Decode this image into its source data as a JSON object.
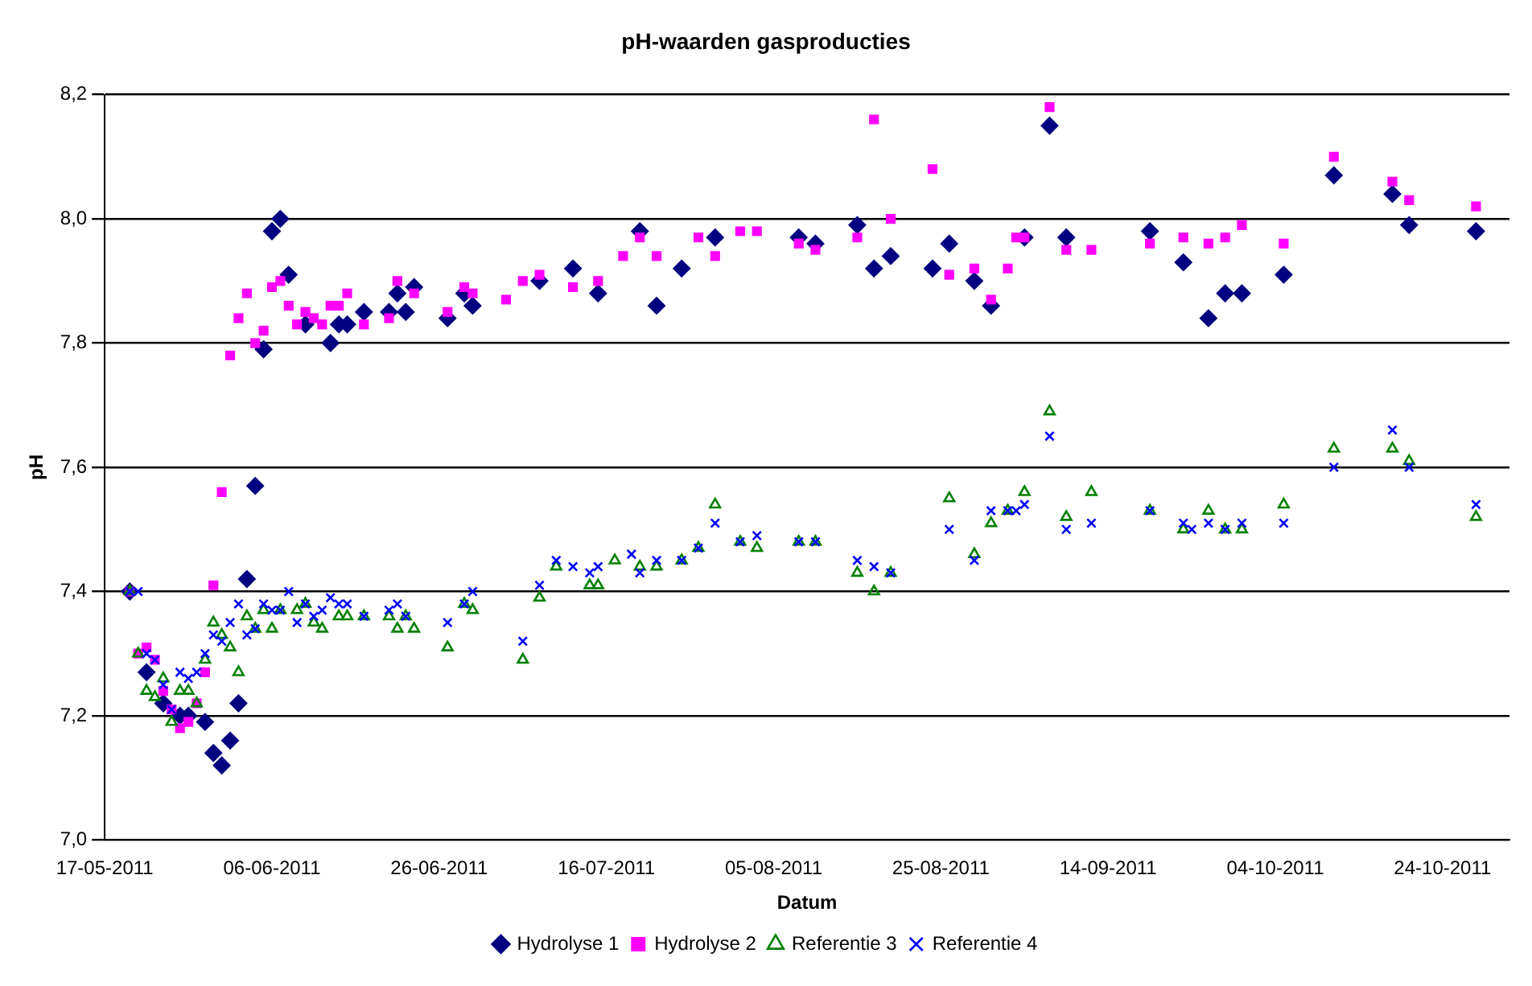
{
  "chart_data": {
    "type": "scatter",
    "title": "pH-waarden gasproducties",
    "xlabel": "Datum",
    "ylabel": "pH",
    "xlim": [
      "2011-05-17",
      "2011-11-01"
    ],
    "xticks": [
      {
        "value": "2011-05-17",
        "label": "17-05-2011"
      },
      {
        "value": "2011-06-06",
        "label": "06-06-2011"
      },
      {
        "value": "2011-06-26",
        "label": "26-06-2011"
      },
      {
        "value": "2011-07-16",
        "label": "16-07-2011"
      },
      {
        "value": "2011-08-05",
        "label": "05-08-2011"
      },
      {
        "value": "2011-08-25",
        "label": "25-08-2011"
      },
      {
        "value": "2011-09-14",
        "label": "14-09-2011"
      },
      {
        "value": "2011-10-04",
        "label": "04-10-2011"
      },
      {
        "value": "2011-10-24",
        "label": "24-10-2011"
      }
    ],
    "ylim": [
      7.0,
      8.2
    ],
    "yticks": [
      {
        "value": 7.0,
        "label": "7,0"
      },
      {
        "value": 7.2,
        "label": "7,2"
      },
      {
        "value": 7.4,
        "label": "7,4"
      },
      {
        "value": 7.6,
        "label": "7,6"
      },
      {
        "value": 7.8,
        "label": "7,8"
      },
      {
        "value": 8.0,
        "label": "8,0"
      },
      {
        "value": 8.2,
        "label": "8,2"
      }
    ],
    "grid": "y",
    "legend": "bottom",
    "series": [
      {
        "name": "Hydrolyse 1",
        "color": "#000080",
        "marker": "diamond",
        "x": [
          "2011-05-20",
          "2011-05-22",
          "2011-05-24",
          "2011-05-26",
          "2011-05-27",
          "2011-05-29",
          "2011-05-30",
          "2011-05-31",
          "2011-06-01",
          "2011-06-02",
          "2011-06-03",
          "2011-06-04",
          "2011-06-05",
          "2011-06-06",
          "2011-06-07",
          "2011-06-08",
          "2011-06-10",
          "2011-06-13",
          "2011-06-14",
          "2011-06-15",
          "2011-06-17",
          "2011-06-20",
          "2011-06-21",
          "2011-06-22",
          "2011-06-23",
          "2011-06-27",
          "2011-06-29",
          "2011-06-30",
          "2011-07-08",
          "2011-07-12",
          "2011-07-15",
          "2011-07-20",
          "2011-07-22",
          "2011-07-25",
          "2011-07-29",
          "2011-08-08",
          "2011-08-10",
          "2011-08-15",
          "2011-08-17",
          "2011-08-19",
          "2011-08-24",
          "2011-08-26",
          "2011-08-29",
          "2011-08-31",
          "2011-09-04",
          "2011-09-07",
          "2011-09-09",
          "2011-09-19",
          "2011-09-23",
          "2011-09-26",
          "2011-09-28",
          "2011-09-30",
          "2011-10-05",
          "2011-10-11",
          "2011-10-18",
          "2011-10-20",
          "2011-10-28"
        ],
        "values": [
          7.4,
          7.27,
          7.22,
          7.2,
          7.2,
          7.19,
          7.14,
          7.12,
          7.16,
          7.22,
          7.42,
          7.57,
          7.79,
          7.98,
          8.0,
          7.91,
          7.83,
          7.8,
          7.83,
          7.83,
          7.85,
          7.85,
          7.88,
          7.85,
          7.89,
          7.84,
          7.88,
          7.86,
          7.9,
          7.92,
          7.88,
          7.98,
          7.86,
          7.92,
          7.97,
          7.97,
          7.96,
          7.99,
          7.92,
          7.94,
          7.92,
          7.96,
          7.9,
          7.86,
          7.97,
          8.15,
          7.97,
          7.98,
          7.93,
          7.84,
          7.88,
          7.88,
          7.91,
          8.07,
          8.04,
          7.99,
          7.98
        ]
      },
      {
        "name": "Hydrolyse 2",
        "color": "#ff00ff",
        "marker": "square",
        "x": [
          "2011-05-20",
          "2011-05-21",
          "2011-05-22",
          "2011-05-23",
          "2011-05-24",
          "2011-05-25",
          "2011-05-26",
          "2011-05-27",
          "2011-05-28",
          "2011-05-29",
          "2011-05-30",
          "2011-05-31",
          "2011-06-01",
          "2011-06-02",
          "2011-06-03",
          "2011-06-04",
          "2011-06-05",
          "2011-06-06",
          "2011-06-07",
          "2011-06-08",
          "2011-06-09",
          "2011-06-10",
          "2011-06-11",
          "2011-06-12",
          "2011-06-13",
          "2011-06-14",
          "2011-06-15",
          "2011-06-17",
          "2011-06-20",
          "2011-06-21",
          "2011-06-23",
          "2011-06-27",
          "2011-06-29",
          "2011-06-30",
          "2011-07-04",
          "2011-07-06",
          "2011-07-08",
          "2011-07-12",
          "2011-07-15",
          "2011-07-18",
          "2011-07-20",
          "2011-07-22",
          "2011-07-27",
          "2011-07-29",
          "2011-08-01",
          "2011-08-03",
          "2011-08-08",
          "2011-08-10",
          "2011-08-15",
          "2011-08-17",
          "2011-08-19",
          "2011-08-24",
          "2011-08-26",
          "2011-08-29",
          "2011-08-31",
          "2011-09-02",
          "2011-09-03",
          "2011-09-04",
          "2011-09-07",
          "2011-09-09",
          "2011-09-12",
          "2011-09-19",
          "2011-09-23",
          "2011-09-26",
          "2011-09-28",
          "2011-09-30",
          "2011-10-05",
          "2011-10-11",
          "2011-10-18",
          "2011-10-20",
          "2011-10-28"
        ],
        "values": [
          7.4,
          7.3,
          7.31,
          7.29,
          7.24,
          7.21,
          7.18,
          7.19,
          7.22,
          7.27,
          7.41,
          7.56,
          7.78,
          7.84,
          7.88,
          7.8,
          7.82,
          7.89,
          7.9,
          7.86,
          7.83,
          7.85,
          7.84,
          7.83,
          7.86,
          7.86,
          7.88,
          7.83,
          7.84,
          7.9,
          7.88,
          7.85,
          7.89,
          7.88,
          7.87,
          7.9,
          7.91,
          7.89,
          7.9,
          7.94,
          7.97,
          7.94,
          7.97,
          7.94,
          7.98,
          7.98,
          7.96,
          7.95,
          7.97,
          8.16,
          8.0,
          8.08,
          7.91,
          7.92,
          7.87,
          7.92,
          7.97,
          7.97,
          8.18,
          7.95,
          7.95,
          7.96,
          7.97,
          7.96,
          7.97,
          7.99,
          7.96,
          8.1,
          8.06,
          8.03,
          8.02
        ]
      },
      {
        "name": "Referentie 3",
        "color": "#008000",
        "marker": "triangle",
        "x": [
          "2011-05-20",
          "2011-05-21",
          "2011-05-22",
          "2011-05-23",
          "2011-05-24",
          "2011-05-25",
          "2011-05-26",
          "2011-05-27",
          "2011-05-28",
          "2011-05-29",
          "2011-05-30",
          "2011-05-31",
          "2011-06-01",
          "2011-06-02",
          "2011-06-03",
          "2011-06-04",
          "2011-06-05",
          "2011-06-06",
          "2011-06-07",
          "2011-06-09",
          "2011-06-10",
          "2011-06-11",
          "2011-06-12",
          "2011-06-14",
          "2011-06-15",
          "2011-06-17",
          "2011-06-20",
          "2011-06-21",
          "2011-06-22",
          "2011-06-23",
          "2011-06-27",
          "2011-06-29",
          "2011-06-30",
          "2011-07-06",
          "2011-07-08",
          "2011-07-10",
          "2011-07-14",
          "2011-07-15",
          "2011-07-17",
          "2011-07-20",
          "2011-07-22",
          "2011-07-25",
          "2011-07-27",
          "2011-07-29",
          "2011-08-01",
          "2011-08-03",
          "2011-08-08",
          "2011-08-10",
          "2011-08-15",
          "2011-08-17",
          "2011-08-19",
          "2011-08-26",
          "2011-08-29",
          "2011-08-31",
          "2011-09-02",
          "2011-09-04",
          "2011-09-07",
          "2011-09-09",
          "2011-09-12",
          "2011-09-19",
          "2011-09-23",
          "2011-09-26",
          "2011-09-28",
          "2011-09-30",
          "2011-10-05",
          "2011-10-11",
          "2011-10-18",
          "2011-10-20",
          "2011-10-28"
        ],
        "values": [
          7.4,
          7.3,
          7.24,
          7.23,
          7.26,
          7.19,
          7.24,
          7.24,
          7.22,
          7.29,
          7.35,
          7.33,
          7.31,
          7.27,
          7.36,
          7.34,
          7.37,
          7.34,
          7.37,
          7.37,
          7.38,
          7.35,
          7.34,
          7.36,
          7.36,
          7.36,
          7.36,
          7.34,
          7.36,
          7.34,
          7.31,
          7.38,
          7.37,
          7.29,
          7.39,
          7.44,
          7.41,
          7.41,
          7.45,
          7.44,
          7.44,
          7.45,
          7.47,
          7.54,
          7.48,
          7.47,
          7.48,
          7.48,
          7.43,
          7.4,
          7.43,
          7.55,
          7.46,
          7.51,
          7.53,
          7.56,
          7.69,
          7.52,
          7.56,
          7.53,
          7.5,
          7.53,
          7.5,
          7.5,
          7.54,
          7.63,
          7.63,
          7.61,
          7.52
        ]
      },
      {
        "name": "Referentie 4",
        "color": "#0000ff",
        "marker": "cross",
        "x": [
          "2011-05-20",
          "2011-05-21",
          "2011-05-22",
          "2011-05-23",
          "2011-05-24",
          "2011-05-25",
          "2011-05-26",
          "2011-05-27",
          "2011-05-28",
          "2011-05-29",
          "2011-05-30",
          "2011-05-31",
          "2011-06-01",
          "2011-06-02",
          "2011-06-03",
          "2011-06-04",
          "2011-06-05",
          "2011-06-06",
          "2011-06-07",
          "2011-06-08",
          "2011-06-09",
          "2011-06-10",
          "2011-06-11",
          "2011-06-12",
          "2011-06-13",
          "2011-06-14",
          "2011-06-15",
          "2011-06-17",
          "2011-06-20",
          "2011-06-21",
          "2011-06-22",
          "2011-06-27",
          "2011-06-29",
          "2011-06-30",
          "2011-07-06",
          "2011-07-08",
          "2011-07-10",
          "2011-07-12",
          "2011-07-14",
          "2011-07-15",
          "2011-07-19",
          "2011-07-20",
          "2011-07-22",
          "2011-07-25",
          "2011-07-27",
          "2011-07-29",
          "2011-08-01",
          "2011-08-03",
          "2011-08-08",
          "2011-08-10",
          "2011-08-15",
          "2011-08-17",
          "2011-08-19",
          "2011-08-26",
          "2011-08-29",
          "2011-08-31",
          "2011-09-02",
          "2011-09-03",
          "2011-09-04",
          "2011-09-07",
          "2011-09-09",
          "2011-09-12",
          "2011-09-19",
          "2011-09-23",
          "2011-09-24",
          "2011-09-26",
          "2011-09-28",
          "2011-09-30",
          "2011-10-05",
          "2011-10-11",
          "2011-10-18",
          "2011-10-20",
          "2011-10-28"
        ],
        "values": [
          7.4,
          7.4,
          7.3,
          7.29,
          7.25,
          7.21,
          7.27,
          7.26,
          7.27,
          7.3,
          7.33,
          7.32,
          7.35,
          7.38,
          7.33,
          7.34,
          7.38,
          7.37,
          7.37,
          7.4,
          7.35,
          7.38,
          7.36,
          7.37,
          7.39,
          7.38,
          7.38,
          7.36,
          7.37,
          7.38,
          7.36,
          7.35,
          7.38,
          7.4,
          7.32,
          7.41,
          7.45,
          7.44,
          7.43,
          7.44,
          7.46,
          7.43,
          7.45,
          7.45,
          7.47,
          7.51,
          7.48,
          7.49,
          7.48,
          7.48,
          7.45,
          7.44,
          7.43,
          7.5,
          7.45,
          7.53,
          7.53,
          7.53,
          7.54,
          7.65,
          7.5,
          7.51,
          7.53,
          7.51,
          7.5,
          7.51,
          7.5,
          7.51,
          7.51,
          7.6,
          7.66,
          7.6,
          7.54
        ]
      }
    ]
  }
}
